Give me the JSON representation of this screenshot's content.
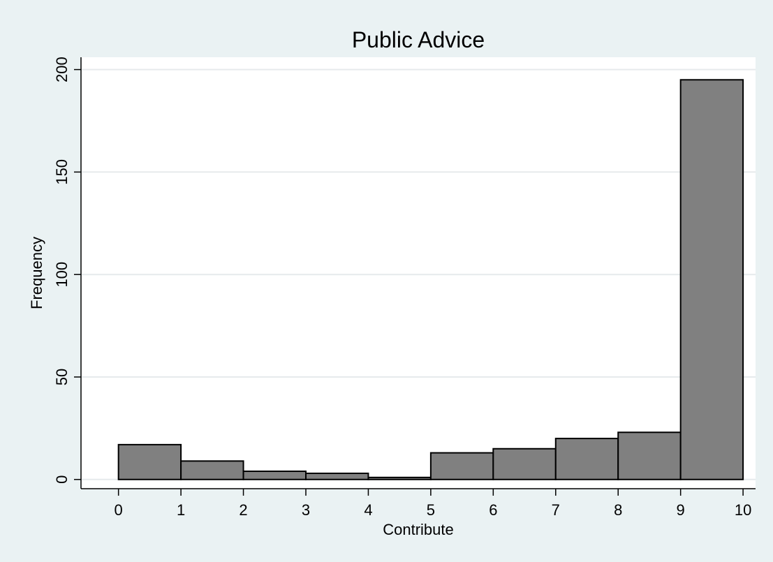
{
  "chart_data": {
    "type": "bar",
    "title": "Public Advice",
    "xlabel": "Contribute",
    "ylabel": "Frequency",
    "bins": [
      {
        "x0": 0,
        "x1": 1,
        "count": 17
      },
      {
        "x0": 1,
        "x1": 2,
        "count": 9
      },
      {
        "x0": 2,
        "x1": 3,
        "count": 4
      },
      {
        "x0": 3,
        "x1": 4,
        "count": 3
      },
      {
        "x0": 4,
        "x1": 5,
        "count": 1
      },
      {
        "x0": 5,
        "x1": 6,
        "count": 13
      },
      {
        "x0": 6,
        "x1": 7,
        "count": 15
      },
      {
        "x0": 7,
        "x1": 8,
        "count": 20
      },
      {
        "x0": 8,
        "x1": 9,
        "count": 23
      },
      {
        "x0": 9,
        "x1": 10,
        "count": 195
      }
    ],
    "xticks": [
      "0",
      "1",
      "2",
      "3",
      "4",
      "5",
      "6",
      "7",
      "8",
      "9",
      "10"
    ],
    "yticks": [
      "0",
      "50",
      "100",
      "150",
      "200"
    ],
    "xlim": [
      -0.6,
      10.2
    ],
    "ylim": [
      -4.5,
      206
    ],
    "grid": true,
    "colors": {
      "outer_background": "#eaf2f3",
      "plot_background": "#ffffff",
      "bar_fill": "#808080",
      "bar_stroke": "#000000",
      "gridline": "#e6eaec"
    }
  }
}
